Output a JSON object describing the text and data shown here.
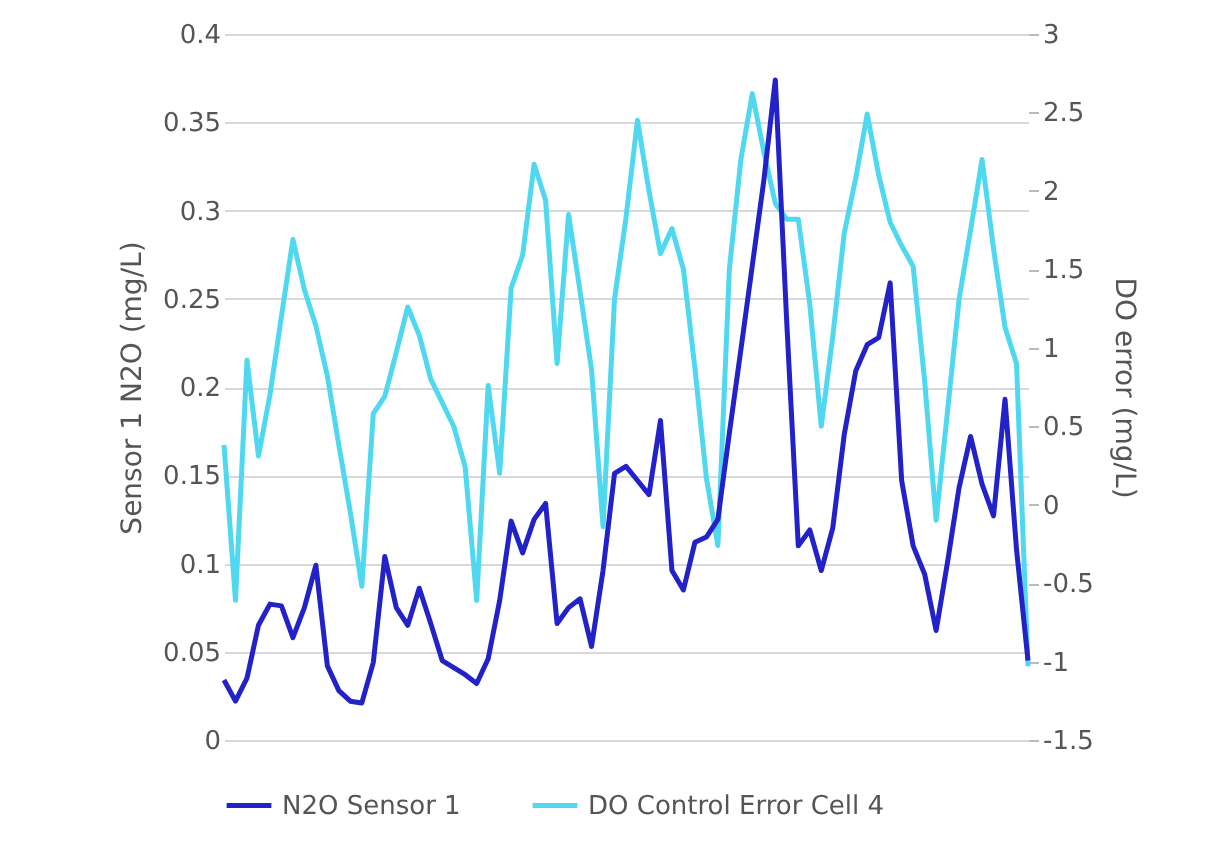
{
  "chart_data": {
    "type": "line",
    "ylabel": "Sensor 1 N2O (mg/L)",
    "y2label": "DO error (mg/L)",
    "categories": [
      null,
      null,
      null,
      null,
      null,
      null,
      null,
      null,
      null,
      null,
      null,
      null,
      null,
      null,
      null,
      null,
      null,
      null,
      null,
      null,
      null,
      null,
      null,
      null,
      null,
      null,
      null,
      null,
      null,
      null,
      null,
      null,
      null,
      null,
      null,
      null,
      null,
      null,
      null,
      null,
      null,
      null,
      null,
      null,
      null,
      null,
      null,
      null,
      null,
      null,
      null,
      null,
      null,
      null,
      null,
      null,
      null,
      null,
      null,
      null,
      null,
      null,
      null,
      null,
      null,
      null,
      null,
      null,
      null,
      null,
      null
    ],
    "ylim": [
      0,
      0.4
    ],
    "yticks": [
      0,
      0.05,
      0.1,
      0.15,
      0.2,
      0.25,
      0.3,
      0.35,
      0.4
    ],
    "y2lim": [
      -1.5,
      3
    ],
    "y2ticks": [
      -1.5,
      -1,
      -0.5,
      0,
      0.5,
      1,
      1.5,
      2,
      2.5,
      3
    ],
    "grid": "y",
    "legend": "bottom",
    "line_style": "solid",
    "series": [
      {
        "name": "N2O Sensor 1",
        "color": "#2222c8",
        "values": [
          0.034,
          0.022,
          0.035,
          0.065,
          0.077,
          0.076,
          0.058,
          0.075,
          0.099,
          0.042,
          0.028,
          0.022,
          0.021,
          0.044,
          0.104,
          0.075,
          0.065,
          0.086,
          0.066,
          0.045,
          0.041,
          0.037,
          0.032,
          0.046,
          0.079,
          0.124,
          0.106,
          0.125,
          0.134,
          0.066,
          0.075,
          0.08,
          0.053,
          0.096,
          0.151,
          0.155,
          0.147,
          0.139,
          0.181,
          0.096,
          0.085,
          0.112,
          0.115,
          0.125,
          0.174,
          0.221,
          0.269,
          0.317,
          0.374,
          0.236,
          0.11,
          0.119,
          0.096,
          0.12,
          0.173,
          0.209,
          0.224,
          0.228,
          0.259,
          0.147,
          0.11,
          0.094,
          0.062,
          0.101,
          0.143,
          0.172,
          0.145,
          0.127,
          0.193,
          0.108,
          0.045
        ]
      },
      {
        "name": "DO Control Error Cell 4",
        "color": "#4fd8f0",
        "axis": "y2",
        "values": [
          0.38,
          -0.61,
          0.92,
          0.31,
          0.7,
          1.2,
          1.69,
          1.37,
          1.14,
          0.82,
          0.38,
          -0.05,
          -0.52,
          0.58,
          0.69,
          0.97,
          1.26,
          1.08,
          0.8,
          0.65,
          0.5,
          0.24,
          -0.61,
          0.76,
          0.2,
          1.38,
          1.59,
          2.17,
          1.94,
          0.9,
          1.85,
          1.36,
          0.86,
          -0.14,
          1.31,
          1.83,
          2.45,
          2.0,
          1.6,
          1.76,
          1.5,
          0.87,
          0.17,
          -0.26,
          1.5,
          2.2,
          2.62,
          2.25,
          1.92,
          1.82,
          1.82,
          1.28,
          0.5,
          1.07,
          1.73,
          2.08,
          2.49,
          2.1,
          1.8,
          1.65,
          1.52,
          0.79,
          -0.1,
          0.6,
          1.31,
          1.75,
          2.2,
          1.63,
          1.13,
          0.9,
          -1.03
        ]
      }
    ]
  }
}
